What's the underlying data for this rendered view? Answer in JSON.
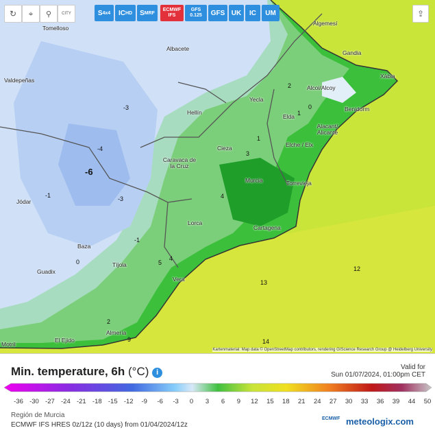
{
  "toolbar": {
    "icons": [
      "CITY"
    ],
    "buttons": [
      {
        "main": "S",
        "sub": "4x4"
      },
      {
        "main": "IC",
        "sub": "HD"
      },
      {
        "main": "S",
        "sub": "MRF"
      },
      {
        "main": "ECMWF",
        "sub": "IFS"
      },
      {
        "main": "GFS",
        "sub": "0.125"
      },
      {
        "main": "GFS"
      },
      {
        "main": "UK"
      },
      {
        "main": "IC"
      },
      {
        "main": "UM"
      }
    ]
  },
  "map": {
    "cities": [
      "Tomelloso",
      "Valdepeñas",
      "Albacete",
      "Hellín",
      "Yecla",
      "Algemesí",
      "Gandia",
      "Xàbia",
      "Alcoi/Alcoy",
      "Benidorm",
      "Elda",
      "Alacant/ Alicante",
      "Elche / Elx",
      "Cieza",
      "Caravaca de la Cruz",
      "Murcia",
      "Torrevieja",
      "Lorca",
      "Cartagena",
      "Jódar",
      "Baza",
      "Guadix",
      "Tíjola",
      "Vera",
      "Almería",
      "El Ejido",
      "Motril"
    ],
    "contour_labels": [
      "-3",
      "-4",
      "-6",
      "-3",
      "-1",
      "-1",
      "0",
      "1",
      "2",
      "3",
      "4",
      "5",
      "4",
      "0",
      "1",
      "12",
      "13",
      "14",
      "2",
      "9"
    ],
    "attribution": "Kartenmaterial: Map data © OpenStreetMap contributors, rendering GIScience Research Group @ Heidelberg University"
  },
  "footer": {
    "title": "Min. temperature, 6h",
    "unit": "(°C)",
    "valid_label": "Valid for",
    "valid_time": "Sun 01/07/2024, 01:00pm CET",
    "scale_ticks": [
      -36,
      -30,
      -27,
      -24,
      -21,
      -18,
      -15,
      -12,
      -9,
      -6,
      -3,
      0,
      3,
      6,
      9,
      12,
      15,
      18,
      21,
      24,
      27,
      30,
      33,
      36,
      39,
      44,
      50
    ],
    "region": "Región de Murcia",
    "model_run": "ECMWF IFS HRES 0z/12z (10 days) from 01/04/2024/12z",
    "ecmwf_logo": "ECMWF",
    "brand": "meteologix.com"
  }
}
